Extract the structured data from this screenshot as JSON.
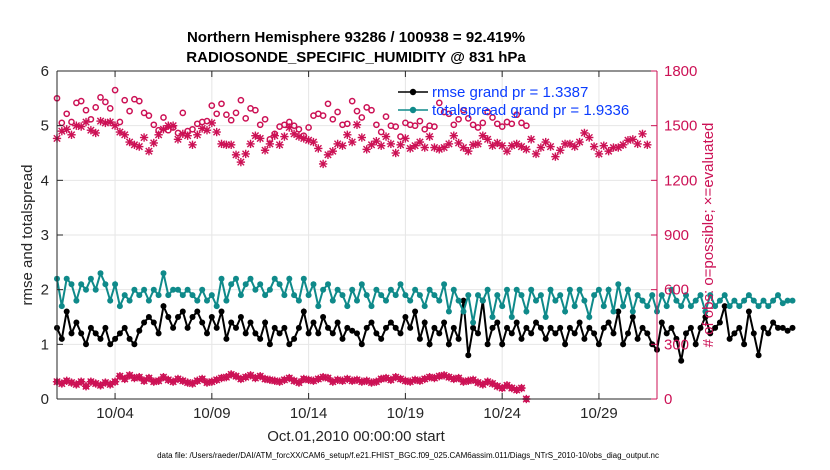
{
  "chart_data": {
    "type": "line",
    "title": "Northern Hemisphere 93286 / 100938 = 92.419%",
    "subtitle": "RADIOSONDE_SPECIFIC_HUMIDITY @ 831 hPa",
    "xlabel": "Oct.01,2010 00:00:00 start",
    "ylabel": "rmse and totalspread",
    "ylabel_right": "# of obs: o=possible; ×=evaluated",
    "xlim": [
      1.0,
      32.0
    ],
    "ylim": [
      0,
      6
    ],
    "ylim_right": [
      0,
      1800
    ],
    "x_ticks": [
      4,
      9,
      14,
      19,
      24,
      29
    ],
    "x_tick_labels": [
      "10/04",
      "10/09",
      "10/14",
      "10/19",
      "10/24",
      "10/29"
    ],
    "y_ticks": [
      0,
      1,
      2,
      3,
      4,
      5,
      6
    ],
    "y_tick_labels": [
      "0",
      "1",
      "2",
      "3",
      "4",
      "5",
      "6"
    ],
    "y_ticks_right": [
      0,
      300,
      600,
      900,
      1200,
      1500,
      1800
    ],
    "y_tick_labels_right": [
      "0",
      "300",
      "600",
      "900",
      "1200",
      "1500",
      "1800"
    ],
    "x_start": 1.0,
    "x_step": 0.25,
    "legend": {
      "position": "top-right",
      "entries": [
        "rmse grand pr = 1.3387",
        "totalspread grand pr = 1.9336"
      ]
    },
    "series": [
      {
        "name": "rmse",
        "color": "#000000",
        "marker": "filled-circle",
        "axis": "left",
        "values": [
          1.3,
          1.1,
          1.6,
          1.2,
          1.4,
          1.2,
          1.0,
          1.3,
          1.2,
          1.1,
          1.3,
          1.0,
          1.1,
          1.2,
          1.3,
          1.1,
          1.0,
          1.25,
          1.4,
          1.5,
          1.4,
          1.2,
          1.7,
          1.5,
          1.3,
          1.5,
          1.6,
          1.3,
          1.5,
          1.6,
          1.4,
          1.2,
          1.5,
          1.3,
          1.6,
          1.1,
          1.4,
          1.3,
          1.5,
          1.2,
          1.4,
          1.2,
          1.1,
          1.4,
          1.0,
          1.3,
          1.2,
          1.3,
          1.0,
          1.1,
          1.3,
          1.6,
          1.2,
          1.4,
          1.2,
          1.5,
          1.3,
          1.2,
          1.4,
          1.1,
          1.3,
          1.25,
          1.2,
          1.0,
          1.3,
          1.4,
          1.2,
          1.1,
          1.3,
          1.4,
          1.3,
          1.2,
          1.5,
          1.3,
          1.6,
          1.1,
          1.4,
          1.0,
          1.3,
          1.2,
          1.4,
          1.0,
          1.3,
          1.1,
          1.8,
          0.8,
          1.3,
          1.2,
          1.8,
          1.0,
          1.3,
          1.4,
          1.0,
          1.3,
          1.2,
          1.4,
          1.1,
          1.3,
          1.2,
          1.4,
          1.3,
          1.1,
          1.3,
          1.2,
          1.3,
          1.0,
          1.3,
          1.2,
          1.4,
          1.1,
          1.3,
          1.2,
          1.0,
          1.3,
          1.4,
          1.2,
          1.6,
          1.0,
          1.2,
          1.5,
          1.1,
          1.3,
          1.2,
          1.0,
          0.9,
          1.4,
          1.2,
          1.3,
          1.1,
          0.7,
          1.2,
          1.3,
          1.0,
          1.3,
          1.5,
          1.2,
          1.3,
          1.4,
          1.7,
          1.1,
          1.2,
          1.3,
          1.0,
          1.6,
          1.2,
          0.8,
          1.3,
          1.2,
          1.4,
          1.3,
          1.3,
          1.25,
          1.3
        ]
      },
      {
        "name": "totalspread",
        "color": "#0f8a8a",
        "marker": "filled-circle",
        "axis": "left",
        "values": [
          2.2,
          1.7,
          2.2,
          2.1,
          1.8,
          2.1,
          2.0,
          2.2,
          2.0,
          2.3,
          2.1,
          1.8,
          2.1,
          1.7,
          1.9,
          1.8,
          2.0,
          1.9,
          2.0,
          1.8,
          2.0,
          1.9,
          2.3,
          1.9,
          2.0,
          2.0,
          1.9,
          2.0,
          1.9,
          1.8,
          2.0,
          1.8,
          1.9,
          1.7,
          2.2,
          1.8,
          2.1,
          2.2,
          1.9,
          2.1,
          2.2,
          2.0,
          2.1,
          1.9,
          2.0,
          2.2,
          2.1,
          1.9,
          2.2,
          1.9,
          1.8,
          2.2,
          1.9,
          2.1,
          1.7,
          2.0,
          2.1,
          1.8,
          2.0,
          1.9,
          1.7,
          2.0,
          1.8,
          2.1,
          1.9,
          1.7,
          2.0,
          1.9,
          1.8,
          2.0,
          1.9,
          2.1,
          1.9,
          1.8,
          2.0,
          1.9,
          1.7,
          2.0,
          1.9,
          1.8,
          2.1,
          1.6,
          2.0,
          1.8,
          1.6,
          1.9,
          1.4,
          1.9,
          1.8,
          2.0,
          1.5,
          1.9,
          1.7,
          2.0,
          1.5,
          2.0,
          1.9,
          1.6,
          2.0,
          1.8,
          1.9,
          1.5,
          2.0,
          1.8,
          1.9,
          1.6,
          2.0,
          1.7,
          2.0,
          1.8,
          1.5,
          1.9,
          2.0,
          1.7,
          2.0,
          1.6,
          2.1,
          1.7,
          2.0,
          1.6,
          1.9,
          1.8,
          1.7,
          1.9,
          1.6,
          1.9,
          1.7,
          2.0,
          1.8,
          1.7,
          1.9,
          1.7,
          1.8,
          1.9,
          1.6,
          1.9,
          1.7,
          1.8,
          1.9,
          1.7,
          1.8,
          1.7,
          1.8,
          1.9,
          1.8,
          1.7,
          1.8,
          1.7,
          1.8,
          1.9,
          1.75,
          1.8,
          1.8
        ]
      },
      {
        "name": "obs possible",
        "color": "#cc1155",
        "marker": "open-circle",
        "axis": "right",
        "values": [
          1650,
          1515,
          1565,
          1520,
          1625,
          1635,
          1585,
          1535,
          1600,
          1655,
          1630,
          1595,
          1695,
          1520,
          1640,
          1580,
          1645,
          1635,
          1570,
          1555,
          1505,
          1475,
          1545,
          1475,
          1490,
          1460,
          1570,
          1470,
          1480,
          1510,
          1520,
          1525,
          1610,
          1565,
          1620,
          1560,
          1530,
          1570,
          1640,
          1540,
          1595,
          1585,
          1505,
          1535,
          1425,
          1455,
          1495,
          1505,
          1520,
          1500,
          1480,
          1445,
          1490,
          1555,
          1565,
          1555,
          1620,
          1535,
          1575,
          1505,
          1510,
          1635,
          1580,
          1545,
          1600,
          1585,
          1505,
          1465,
          1550,
          1500,
          1495,
          1440,
          1515,
          1505,
          1500,
          1525,
          1480,
          1500,
          1495,
          1625,
          1575,
          1565,
          1505,
          1535,
          1585,
          1540,
          1505,
          1490,
          1515,
          1575,
          1545,
          1510,
          1495,
          1520,
          1510,
          1560,
          1515,
          1500
        ]
      },
      {
        "name": "obs evaluated",
        "color": "#cc1155",
        "marker": "x",
        "axis": "right",
        "values": [
          1430,
          1470,
          1480,
          1450,
          1500,
          1495,
          1520,
          1475,
          1460,
          1525,
          1515,
          1520,
          1500,
          1465,
          1450,
          1410,
          1395,
          1385,
          1435,
          1360,
          1405,
          1450,
          1480,
          1500,
          1500,
          1425,
          1455,
          1445,
          1395,
          1450,
          1485,
          1475,
          1515,
          1465,
          1400,
          1395,
          1395,
          1340,
          1300,
          1345,
          1400,
          1445,
          1430,
          1365,
          1400,
          1445,
          1395,
          1440,
          1490,
          1455,
          1440,
          1430,
          1420,
          1410,
          1375,
          1290,
          1340,
          1360,
          1400,
          1390,
          1450,
          1410,
          1505,
          1435,
          1370,
          1395,
          1415,
          1390,
          1440,
          1400,
          1350,
          1395,
          1430,
          1375,
          1390,
          1410,
          1380,
          1440,
          1380,
          1370,
          1380,
          1400,
          1445,
          1405,
          1380,
          1360,
          1395,
          1400,
          1445,
          1425,
          1390,
          1405,
          1390,
          1360,
          1390,
          1400,
          1385,
          1370,
          1425,
          1345,
          1380,
          1410,
          1385,
          1330,
          1365,
          1400,
          1400,
          1385,
          1410,
          1460,
          1435,
          1385,
          1345,
          1390,
          1360,
          1380,
          1380,
          1395,
          1420,
          1425,
          1400,
          1455,
          1395
        ]
      },
      {
        "name": "obs count (bottom)",
        "color": "#cc1155",
        "marker": "open-circle-and-x",
        "axis": "right",
        "values": [
          95,
          85,
          100,
          90,
          80,
          95,
          70,
          95,
          85,
          75,
          90,
          80,
          95,
          125,
          110,
          130,
          115,
          120,
          100,
          115,
          95,
          100,
          120,
          105,
          95,
          110,
          100,
          90,
          85,
          100,
          110,
          90,
          95,
          105,
          115,
          120,
          135,
          125,
          110,
          120,
          130,
          115,
          125,
          110,
          105,
          100,
          95,
          105,
          115,
          100,
          90,
          110,
          105,
          100,
          110,
          120,
          115,
          95,
          105,
          100,
          110,
          100,
          105,
          95,
          100,
          90,
          95,
          110,
          115,
          105,
          120,
          110,
          100,
          95,
          105,
          100,
          110,
          120,
          115,
          125,
          130,
          120,
          110,
          115,
          95,
          100,
          105,
          90,
          80,
          95,
          85,
          70,
          60,
          75,
          60,
          50,
          60,
          0
        ]
      }
    ]
  },
  "footer": {
    "data_file": "data file: /Users/raeder/DAI/ATM_forcXX/CAM6_setup/f.e21.FHIST_BGC.f09_025.CAM6assim.011/Diags_NTrS_2010-10/obs_diag_output.nc"
  }
}
